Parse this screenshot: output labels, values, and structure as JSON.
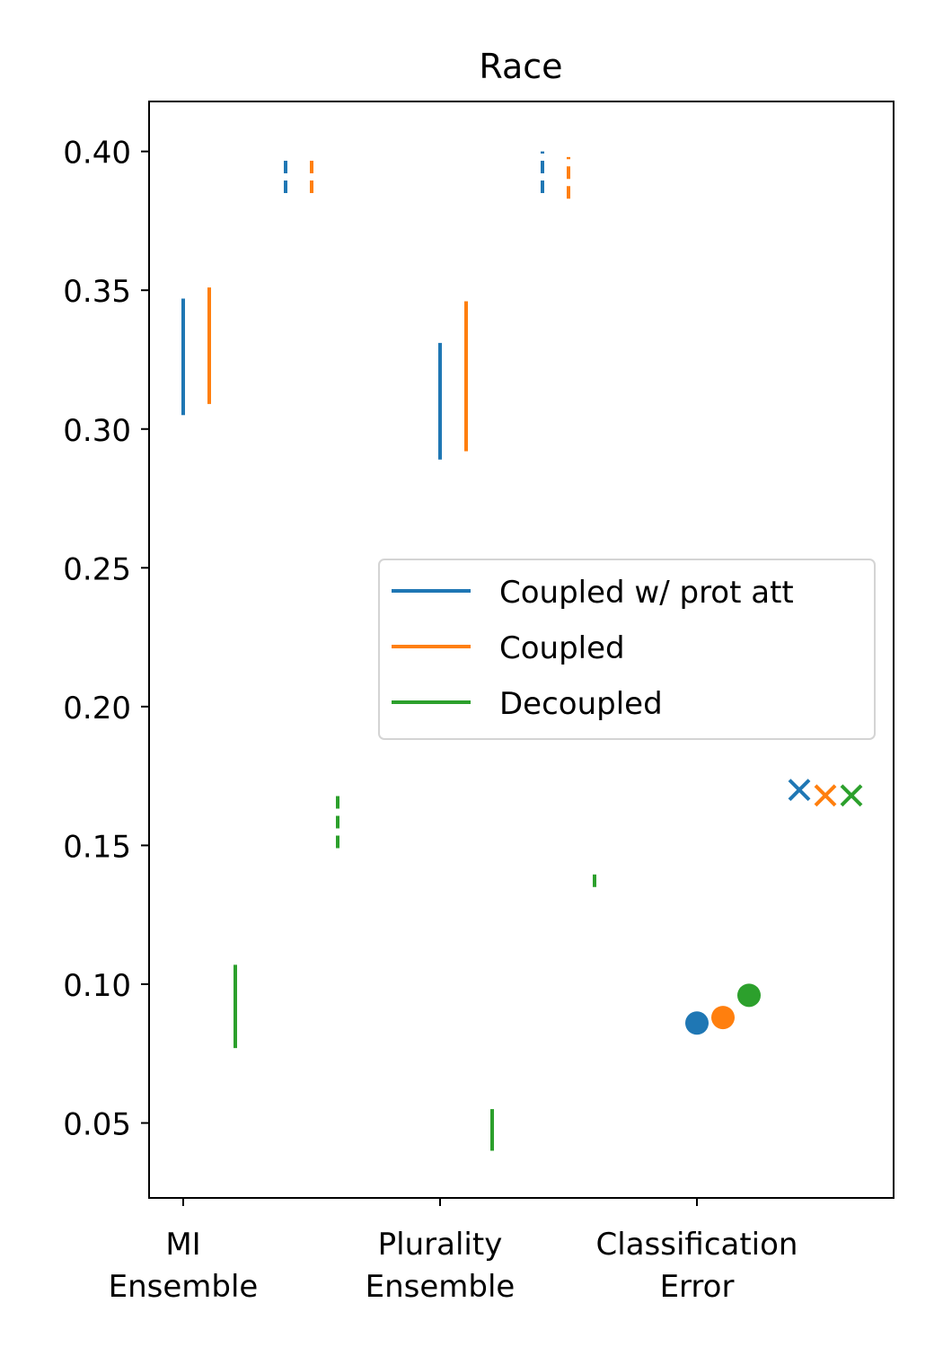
{
  "chart_data": {
    "type": "scatter",
    "title": "Race",
    "xlabel": "",
    "ylabel": "",
    "ylim": [
      0.023,
      0.418
    ],
    "grid": false,
    "legend_placement": "center-right",
    "categories": [
      {
        "id": "mi",
        "lines": [
          "MI",
          "Ensemble"
        ]
      },
      {
        "id": "plurality",
        "lines": [
          "Plurality",
          "Ensemble"
        ]
      },
      {
        "id": "classification",
        "lines": [
          "Classification",
          "Error"
        ]
      }
    ],
    "yticks": [
      "0.05",
      "0.10",
      "0.15",
      "0.20",
      "0.25",
      "0.30",
      "0.35",
      "0.40"
    ],
    "series": [
      {
        "name": "Coupled w/ prot att",
        "color": "#1f77b4",
        "solid": [
          {
            "category": "mi",
            "low": 0.305,
            "high": 0.347
          },
          {
            "category": "plurality",
            "low": 0.289,
            "high": 0.331
          }
        ],
        "dashed": [
          {
            "category": "mi",
            "low": 0.385,
            "high": 0.399
          },
          {
            "category": "plurality",
            "low": 0.385,
            "high": 0.4
          }
        ],
        "dot": 0.086,
        "cross": 0.17
      },
      {
        "name": "Coupled",
        "color": "#ff7f0e",
        "solid": [
          {
            "category": "mi",
            "low": 0.309,
            "high": 0.351
          },
          {
            "category": "plurality",
            "low": 0.292,
            "high": 0.346
          }
        ],
        "dashed": [
          {
            "category": "mi",
            "low": 0.385,
            "high": 0.399
          },
          {
            "category": "plurality",
            "low": 0.383,
            "high": 0.398
          }
        ],
        "dot": 0.088,
        "cross": 0.168
      },
      {
        "name": "Decoupled",
        "color": "#2ca02c",
        "solid": [
          {
            "category": "mi",
            "low": 0.077,
            "high": 0.107
          },
          {
            "category": "plurality",
            "low": 0.04,
            "high": 0.055
          }
        ],
        "dashed": [
          {
            "category": "mi",
            "low": 0.149,
            "high": 0.168
          },
          {
            "category": "plurality",
            "low": 0.135,
            "high": 0.141
          }
        ],
        "dot": 0.096,
        "cross": 0.168
      }
    ]
  }
}
